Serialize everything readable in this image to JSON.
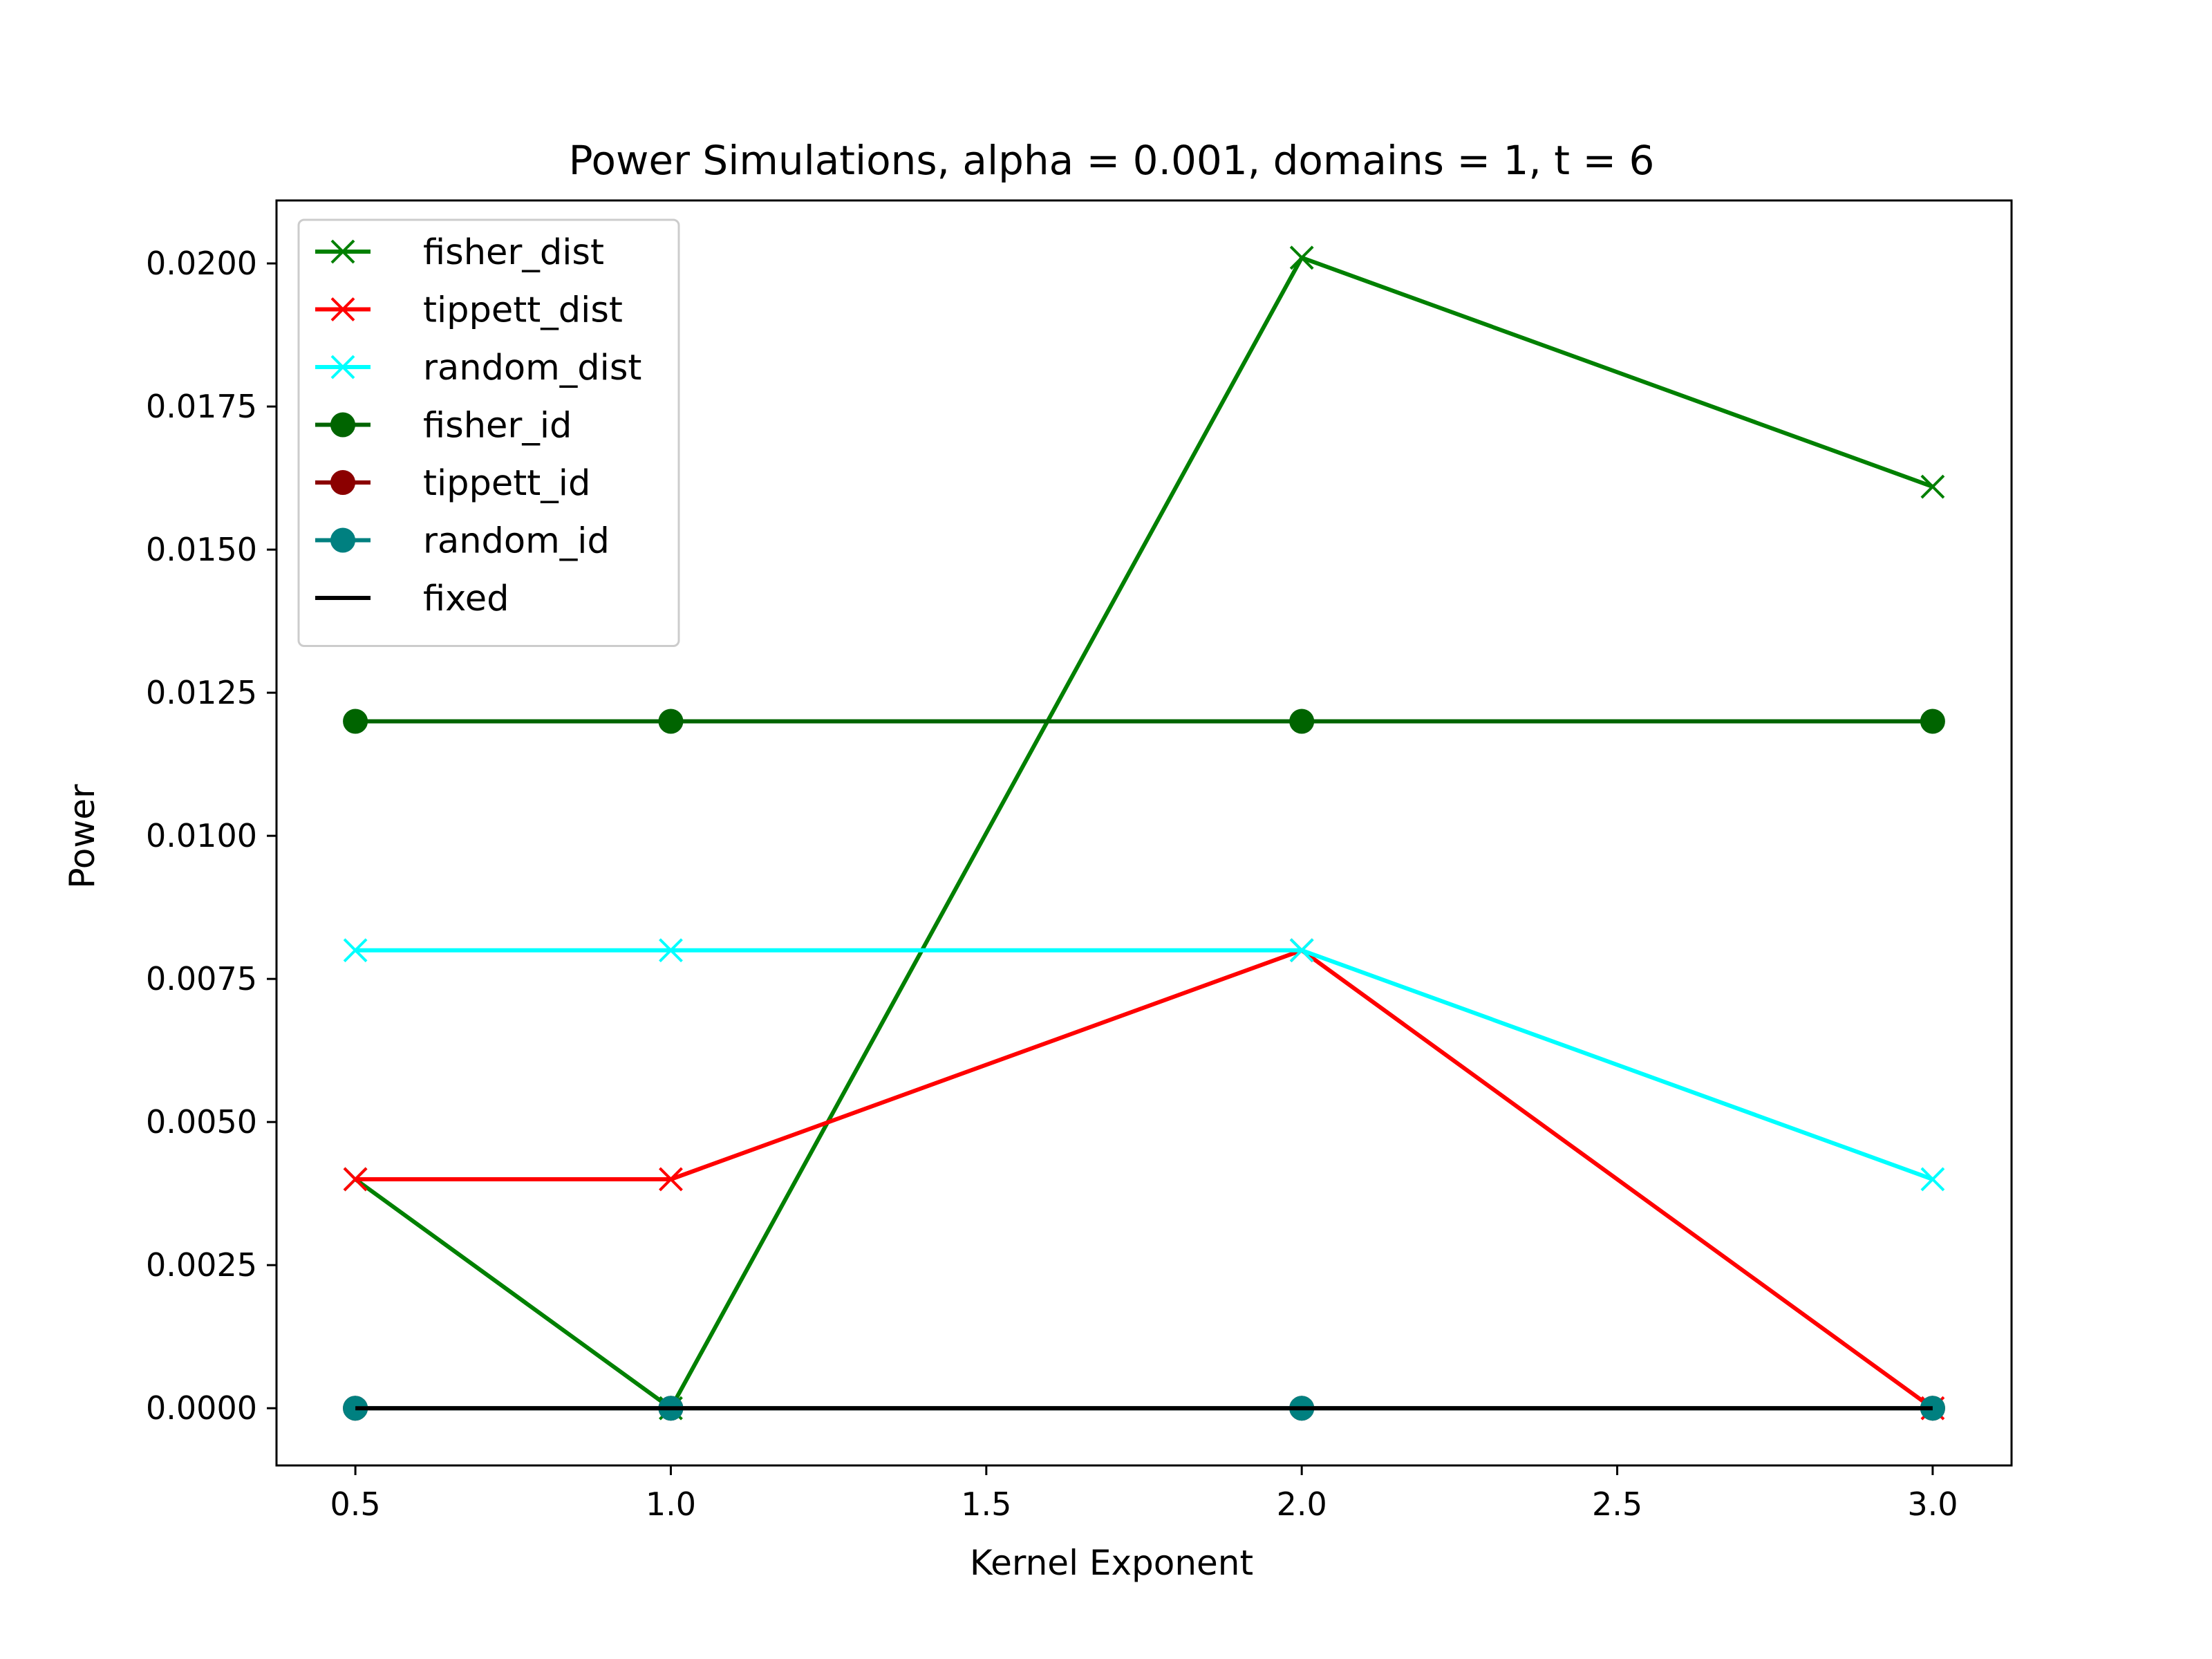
{
  "chart_data": {
    "type": "line",
    "title": "Power Simulations, alpha = 0.001, domains = 1, t = 6",
    "xlabel": "Kernel Exponent",
    "ylabel": "Power",
    "x": [
      0.5,
      1.0,
      2.0,
      3.0
    ],
    "xlim": [
      0.375,
      3.125
    ],
    "ylim": [
      -0.001,
      0.0211
    ],
    "xticks": [
      "0.5",
      "1.0",
      "1.5",
      "2.0",
      "2.5",
      "3.0"
    ],
    "yticks": [
      "0.0000",
      "0.0025",
      "0.0050",
      "0.0075",
      "0.0100",
      "0.0125",
      "0.0150",
      "0.0175",
      "0.0200"
    ],
    "grid": false,
    "legend_position": "upper-left",
    "series": [
      {
        "name": "fisher_dist",
        "values": [
          0.004,
          0.0,
          0.0201,
          0.0161
        ],
        "color": "#008000",
        "marker": "x"
      },
      {
        "name": "tippett_dist",
        "values": [
          0.004,
          0.004,
          0.008,
          0.0
        ],
        "color": "#ff0000",
        "marker": "x"
      },
      {
        "name": "random_dist",
        "values": [
          0.008,
          0.008,
          0.008,
          0.004
        ],
        "color": "#00ffff",
        "marker": "x"
      },
      {
        "name": "fisher_id",
        "values": [
          0.012,
          0.012,
          0.012,
          0.012
        ],
        "color": "#006400",
        "marker": "o"
      },
      {
        "name": "tippett_id",
        "values": [
          0.0,
          0.0,
          0.0,
          0.0
        ],
        "color": "#8b0000",
        "marker": "o"
      },
      {
        "name": "random_id",
        "values": [
          0.0,
          0.0,
          0.0,
          0.0
        ],
        "color": "#008080",
        "marker": "o"
      },
      {
        "name": "fixed",
        "values": [
          0.0,
          0.0,
          0.0,
          0.0
        ],
        "color": "#000000",
        "marker": "none"
      }
    ]
  }
}
